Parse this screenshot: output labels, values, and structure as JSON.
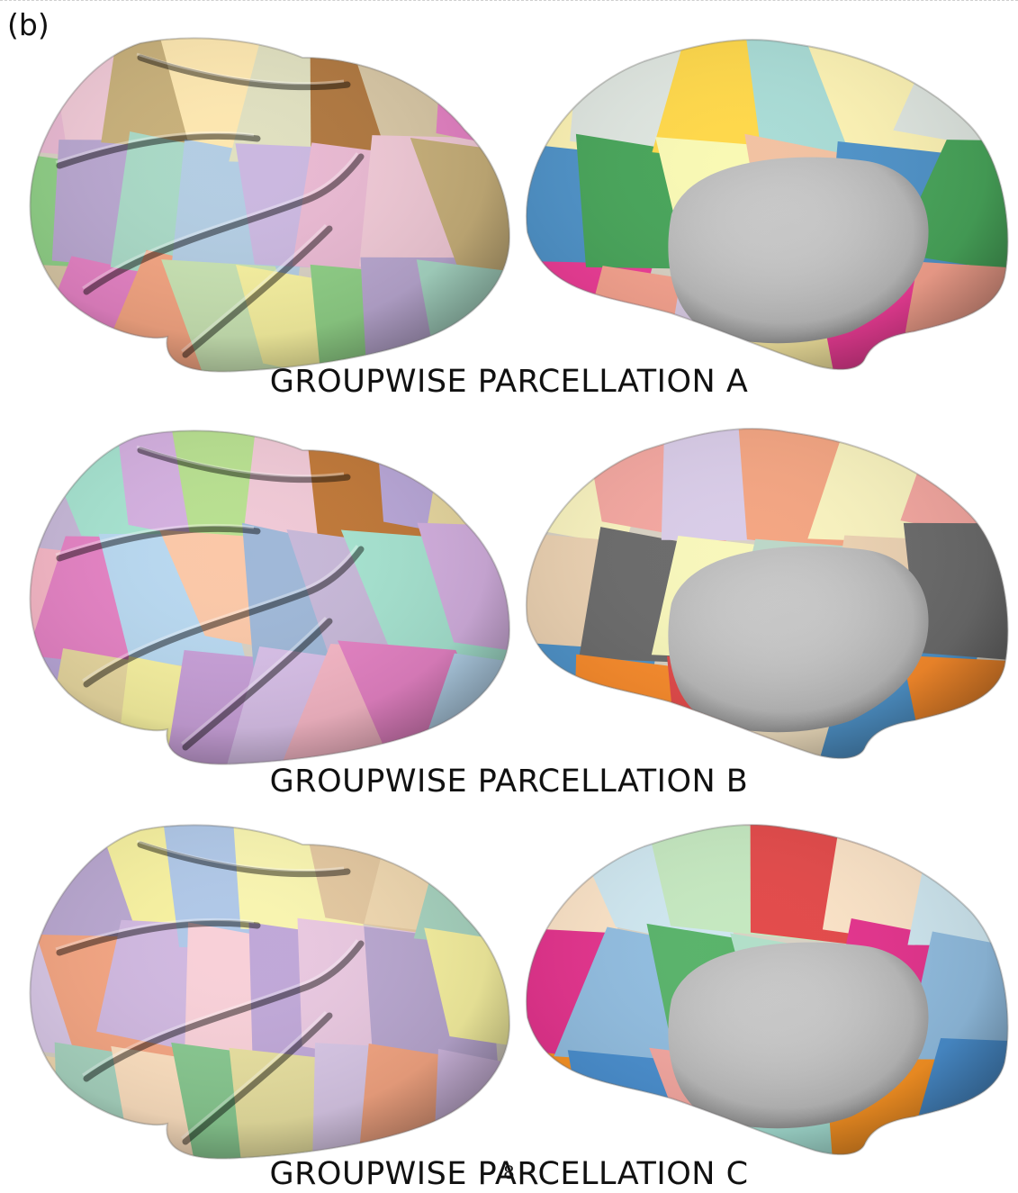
{
  "figure": {
    "panel_label": "(b)",
    "page_number": "8",
    "rows": [
      {
        "caption": "GROUPWISE PARCELLATION A"
      },
      {
        "caption": "GROUPWISE PARCELLATION B"
      },
      {
        "caption": "GROUPWISE PARCELLATION C"
      }
    ]
  },
  "palette": {
    "lateral": [
      [
        "#e9b9d2",
        "#8fcf86",
        "#d8c7a5",
        "#f0c9d6",
        "#b9a7d0",
        "#e582c4",
        "#c8b07a",
        "#a9d9c6",
        "#f4a582",
        "#fde7b0",
        "#b3cde3",
        "#c9e3b3",
        "#e0e0c0",
        "#cbb8e0",
        "#f7f1a0",
        "#b07840"
      ],
      [
        "#c7b8d8",
        "#f6b7c6",
        "#b9a7d8",
        "#a6e3d0",
        "#e582c4",
        "#e8d8a0",
        "#d4b0e0",
        "#b8d8f0",
        "#f7f1a0",
        "#b8e090",
        "#fbc8a8",
        "#c8a0d8",
        "#f0c9d6",
        "#9fb8d8",
        "#d8c0e8",
        "#c07838"
      ],
      [
        "#e9c8e0",
        "#d8c7e6",
        "#f0d8b0",
        "#b9a7d0",
        "#f4a582",
        "#a8d4c0",
        "#f7f1a0",
        "#d0b8e0",
        "#fde0c0",
        "#b0c8e8",
        "#f8d0d8",
        "#88c890",
        "#f9f5b0",
        "#c0a8d8",
        "#e8e0a0",
        "#e4c8a0"
      ]
    ],
    "medial": [
      [
        "#fdf3b4",
        "#4f93c9",
        "#ee3d97",
        "#dfe6e0",
        "#48a55a",
        "#f7a38f",
        "#ffd84a",
        "#f9f9b4",
        "#d7c9e2",
        "#a9dcd6",
        "#f2c2a2",
        "#f5e6a0"
      ],
      [
        "#f9f3bf",
        "#ecd2b2",
        "#4f93c9",
        "#f4a7a0",
        "#6b6b6b",
        "#fa8c2c",
        "#d9cce8",
        "#f8f7bb",
        "#e34a4a",
        "#f4a582",
        "#bcd7c8",
        "#f1e0c0"
      ],
      [
        "#fbe3c7",
        "#e4338d",
        "#fa9424",
        "#cfe7f0",
        "#91bde0",
        "#4a8fcf",
        "#c5e8c0",
        "#59b36a",
        "#f4a7a0",
        "#e34a4a",
        "#b2dfc9",
        "#a7e2d6"
      ]
    ]
  }
}
